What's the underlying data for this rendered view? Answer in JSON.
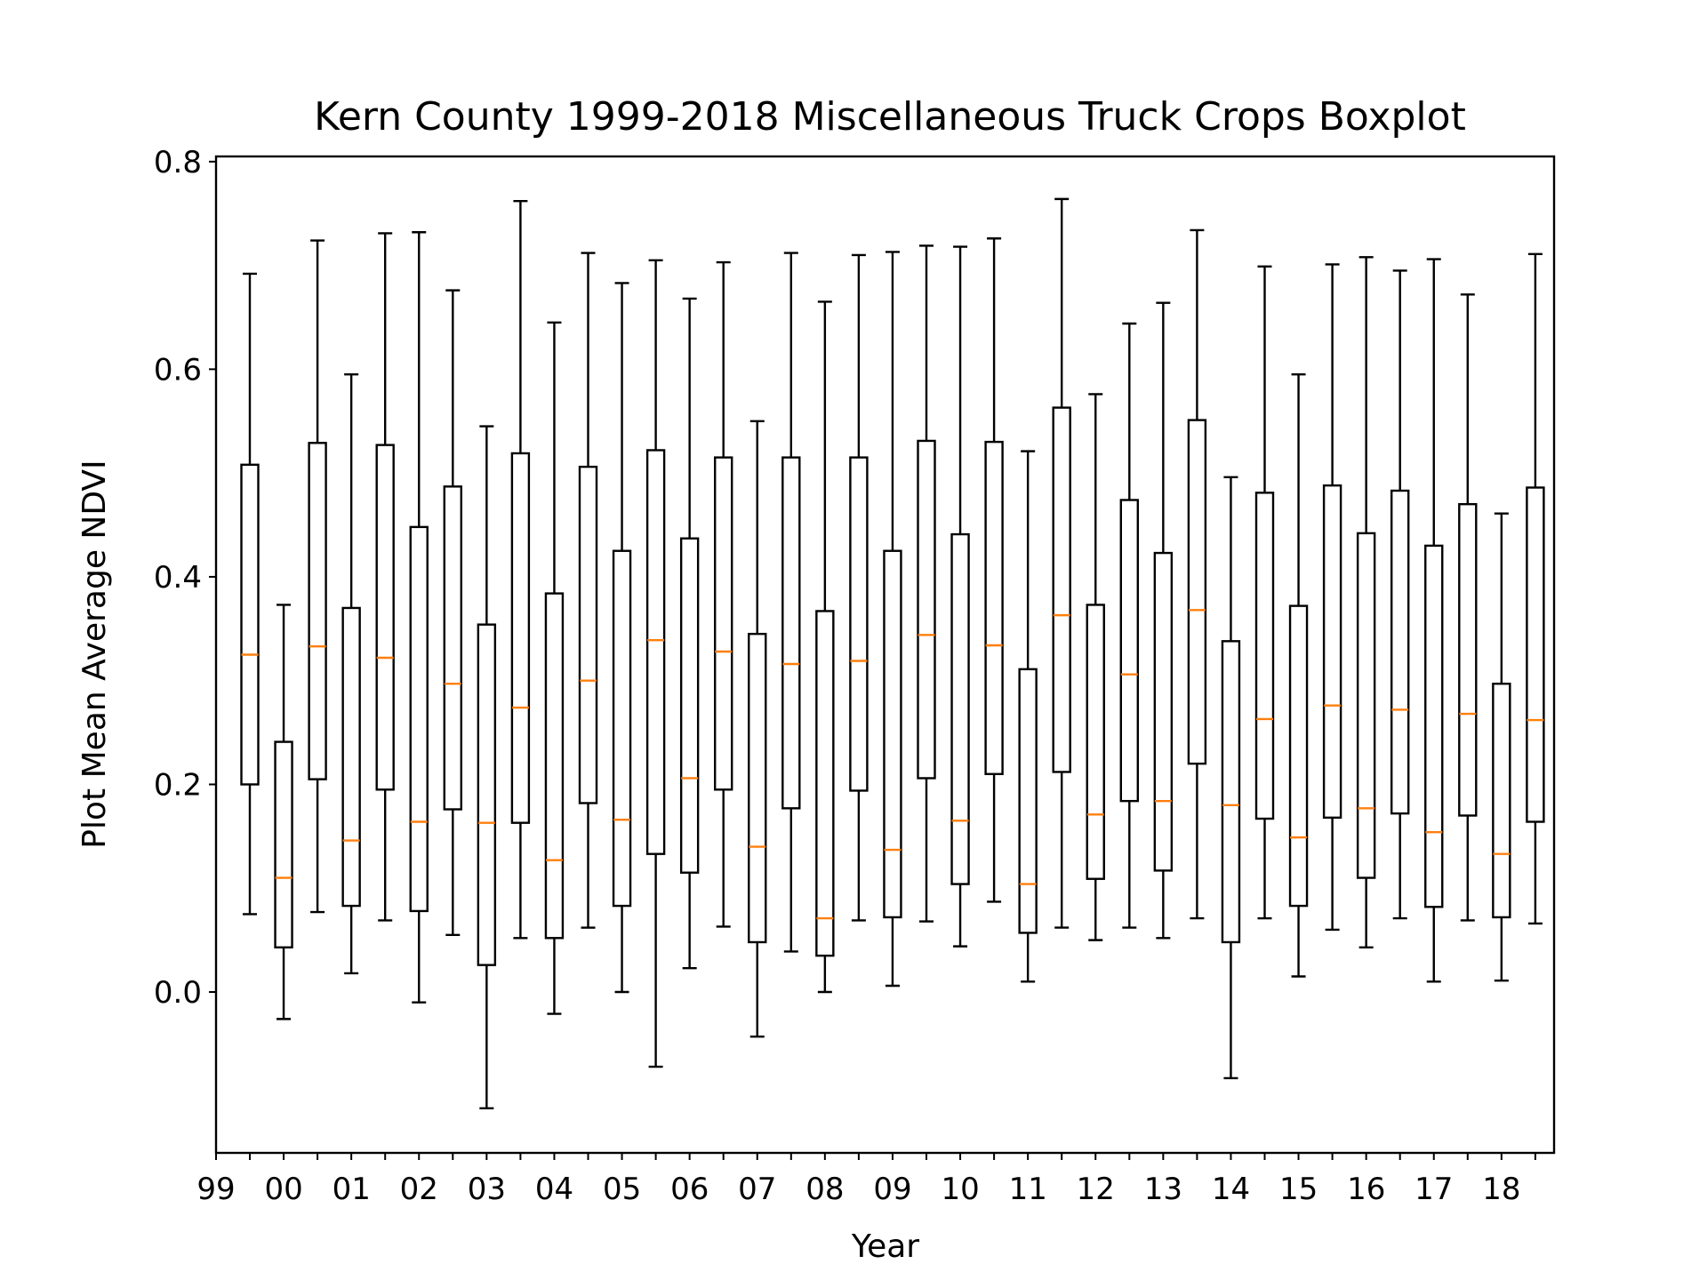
{
  "chart_data": {
    "type": "boxplot",
    "title": "Kern County 1999-2018 Miscellaneous Truck Crops Boxplot",
    "xlabel": "Year",
    "ylabel": "Plot Mean Average NDVI",
    "ylim": [
      -0.155,
      0.805
    ],
    "yticks": [
      0.0,
      0.2,
      0.4,
      0.6,
      0.8
    ],
    "ytick_labels": [
      "0.0",
      "0.2",
      "0.4",
      "0.6",
      "0.8"
    ],
    "xtick_labels": [
      "99",
      "00",
      "01",
      "02",
      "03",
      "04",
      "05",
      "06",
      "07",
      "08",
      "09",
      "10",
      "11",
      "12",
      "13",
      "14",
      "15",
      "16",
      "17",
      "18"
    ],
    "grid": false,
    "colors": {
      "box": "#000000",
      "median": "#ff7f0e"
    },
    "boxes": [
      {
        "whislo": 0.075,
        "q1": 0.2,
        "med": 0.325,
        "q3": 0.508,
        "whishi": 0.692
      },
      {
        "whislo": -0.026,
        "q1": 0.043,
        "med": 0.11,
        "q3": 0.241,
        "whishi": 0.373
      },
      {
        "whislo": 0.077,
        "q1": 0.205,
        "med": 0.333,
        "q3": 0.529,
        "whishi": 0.724
      },
      {
        "whislo": 0.018,
        "q1": 0.083,
        "med": 0.146,
        "q3": 0.37,
        "whishi": 0.595
      },
      {
        "whislo": 0.069,
        "q1": 0.195,
        "med": 0.322,
        "q3": 0.527,
        "whishi": 0.731
      },
      {
        "whislo": -0.01,
        "q1": 0.078,
        "med": 0.164,
        "q3": 0.448,
        "whishi": 0.732
      },
      {
        "whislo": 0.055,
        "q1": 0.176,
        "med": 0.297,
        "q3": 0.487,
        "whishi": 0.676
      },
      {
        "whislo": -0.112,
        "q1": 0.026,
        "med": 0.163,
        "q3": 0.354,
        "whishi": 0.545
      },
      {
        "whislo": 0.052,
        "q1": 0.163,
        "med": 0.274,
        "q3": 0.519,
        "whishi": 0.762
      },
      {
        "whislo": -0.021,
        "q1": 0.052,
        "med": 0.127,
        "q3": 0.384,
        "whishi": 0.645
      },
      {
        "whislo": 0.062,
        "q1": 0.182,
        "med": 0.3,
        "q3": 0.506,
        "whishi": 0.712
      },
      {
        "whislo": 0.0,
        "q1": 0.083,
        "med": 0.166,
        "q3": 0.425,
        "whishi": 0.683
      },
      {
        "whislo": -0.072,
        "q1": 0.133,
        "med": 0.339,
        "q3": 0.522,
        "whishi": 0.705
      },
      {
        "whislo": 0.023,
        "q1": 0.115,
        "med": 0.206,
        "q3": 0.437,
        "whishi": 0.668
      },
      {
        "whislo": 0.063,
        "q1": 0.195,
        "med": 0.328,
        "q3": 0.515,
        "whishi": 0.703
      },
      {
        "whislo": -0.043,
        "q1": 0.048,
        "med": 0.14,
        "q3": 0.345,
        "whishi": 0.55
      },
      {
        "whislo": 0.039,
        "q1": 0.177,
        "med": 0.316,
        "q3": 0.515,
        "whishi": 0.712
      },
      {
        "whislo": 0.0,
        "q1": 0.035,
        "med": 0.071,
        "q3": 0.367,
        "whishi": 0.665
      },
      {
        "whislo": 0.069,
        "q1": 0.194,
        "med": 0.319,
        "q3": 0.515,
        "whishi": 0.71
      },
      {
        "whislo": 0.006,
        "q1": 0.072,
        "med": 0.137,
        "q3": 0.425,
        "whishi": 0.713
      },
      {
        "whislo": 0.068,
        "q1": 0.206,
        "med": 0.344,
        "q3": 0.531,
        "whishi": 0.719
      },
      {
        "whislo": 0.044,
        "q1": 0.104,
        "med": 0.165,
        "q3": 0.441,
        "whishi": 0.718
      },
      {
        "whislo": 0.087,
        "q1": 0.21,
        "med": 0.334,
        "q3": 0.53,
        "whishi": 0.726
      },
      {
        "whislo": 0.01,
        "q1": 0.057,
        "med": 0.104,
        "q3": 0.311,
        "whishi": 0.521
      },
      {
        "whislo": 0.062,
        "q1": 0.212,
        "med": 0.363,
        "q3": 0.563,
        "whishi": 0.764
      },
      {
        "whislo": 0.05,
        "q1": 0.109,
        "med": 0.171,
        "q3": 0.373,
        "whishi": 0.576
      },
      {
        "whislo": 0.062,
        "q1": 0.184,
        "med": 0.306,
        "q3": 0.474,
        "whishi": 0.644
      },
      {
        "whislo": 0.052,
        "q1": 0.117,
        "med": 0.184,
        "q3": 0.423,
        "whishi": 0.664
      },
      {
        "whislo": 0.071,
        "q1": 0.22,
        "med": 0.368,
        "q3": 0.551,
        "whishi": 0.734
      },
      {
        "whislo": -0.083,
        "q1": 0.048,
        "med": 0.18,
        "q3": 0.338,
        "whishi": 0.496
      },
      {
        "whislo": 0.071,
        "q1": 0.167,
        "med": 0.263,
        "q3": 0.481,
        "whishi": 0.699
      },
      {
        "whislo": 0.015,
        "q1": 0.083,
        "med": 0.149,
        "q3": 0.372,
        "whishi": 0.595
      },
      {
        "whislo": 0.06,
        "q1": 0.168,
        "med": 0.276,
        "q3": 0.488,
        "whishi": 0.701
      },
      {
        "whislo": 0.043,
        "q1": 0.11,
        "med": 0.177,
        "q3": 0.442,
        "whishi": 0.708
      },
      {
        "whislo": 0.071,
        "q1": 0.172,
        "med": 0.272,
        "q3": 0.483,
        "whishi": 0.695
      },
      {
        "whislo": 0.01,
        "q1": 0.082,
        "med": 0.154,
        "q3": 0.43,
        "whishi": 0.706
      },
      {
        "whislo": 0.069,
        "q1": 0.17,
        "med": 0.268,
        "q3": 0.47,
        "whishi": 0.672
      },
      {
        "whislo": 0.011,
        "q1": 0.072,
        "med": 0.133,
        "q3": 0.297,
        "whishi": 0.461
      },
      {
        "whislo": 0.066,
        "q1": 0.164,
        "med": 0.262,
        "q3": 0.486,
        "whishi": 0.711
      }
    ]
  }
}
